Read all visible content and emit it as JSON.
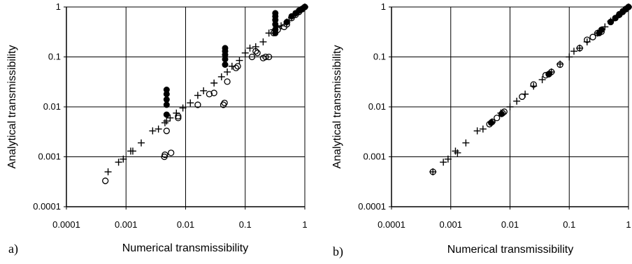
{
  "chart_data": [
    {
      "type": "scatter",
      "panel_label": "a)",
      "xlabel": "Numerical transmissibility",
      "ylabel": "Analytical transmissibility",
      "x_scale": "log",
      "y_scale": "log",
      "xlim": [
        0.0001,
        1
      ],
      "ylim": [
        0.0001,
        1
      ],
      "x_ticks": [
        "0.0001",
        "0.001",
        "0.01",
        "0.1",
        "1"
      ],
      "y_ticks": [
        "0.0001",
        "0.001",
        "0.01",
        "0.1",
        "1"
      ],
      "grid": true,
      "series": [
        {
          "marker": "plus",
          "points": [
            [
              0.0005,
              0.0005
            ],
            [
              0.00075,
              0.00078
            ],
            [
              0.0009,
              0.0009
            ],
            [
              0.0012,
              0.0013
            ],
            [
              0.0013,
              0.0013
            ],
            [
              0.0018,
              0.0019
            ],
            [
              0.0028,
              0.0033
            ],
            [
              0.0035,
              0.0036
            ],
            [
              0.0045,
              0.0048
            ],
            [
              0.0048,
              0.0052
            ],
            [
              0.0055,
              0.006
            ],
            [
              0.007,
              0.0075
            ],
            [
              0.009,
              0.0095
            ],
            [
              0.012,
              0.012
            ],
            [
              0.016,
              0.017
            ],
            [
              0.02,
              0.021
            ],
            [
              0.03,
              0.03
            ],
            [
              0.04,
              0.04
            ],
            [
              0.05,
              0.05
            ],
            [
              0.06,
              0.065
            ],
            [
              0.08,
              0.085
            ],
            [
              0.1,
              0.12
            ],
            [
              0.12,
              0.15
            ],
            [
              0.15,
              0.16
            ],
            [
              0.2,
              0.2
            ],
            [
              0.25,
              0.3
            ],
            [
              0.3,
              0.35
            ],
            [
              0.35,
              0.4
            ],
            [
              0.4,
              0.42
            ],
            [
              0.5,
              0.5
            ],
            [
              0.6,
              0.62
            ],
            [
              0.7,
              0.72
            ],
            [
              0.8,
              0.82
            ],
            [
              0.9,
              0.92
            ],
            [
              1,
              1
            ]
          ]
        },
        {
          "marker": "open-circle",
          "points": [
            [
              0.00045,
              0.00033
            ],
            [
              0.0044,
              0.001
            ],
            [
              0.0045,
              0.0011
            ],
            [
              0.0057,
              0.0012
            ],
            [
              0.0048,
              0.0033
            ],
            [
              0.0075,
              0.006
            ],
            [
              0.0075,
              0.0065
            ],
            [
              0.016,
              0.011
            ],
            [
              0.025,
              0.018
            ],
            [
              0.03,
              0.019
            ],
            [
              0.043,
              0.011
            ],
            [
              0.045,
              0.012
            ],
            [
              0.05,
              0.032
            ],
            [
              0.07,
              0.06
            ],
            [
              0.075,
              0.065
            ],
            [
              0.13,
              0.1
            ],
            [
              0.15,
              0.13
            ],
            [
              0.16,
              0.12
            ],
            [
              0.2,
              0.095
            ],
            [
              0.22,
              0.1
            ],
            [
              0.25,
              0.1
            ],
            [
              0.3,
              0.3
            ],
            [
              0.35,
              0.35
            ],
            [
              0.45,
              0.4
            ],
            [
              0.5,
              0.45
            ],
            [
              0.6,
              0.6
            ],
            [
              0.7,
              0.7
            ],
            [
              0.8,
              0.8
            ],
            [
              0.9,
              0.9
            ],
            [
              1,
              1
            ]
          ]
        },
        {
          "marker": "filled-circle",
          "points": [
            [
              0.0048,
              0.007
            ],
            [
              0.0048,
              0.011
            ],
            [
              0.0048,
              0.014
            ],
            [
              0.0048,
              0.018
            ],
            [
              0.0048,
              0.022
            ],
            [
              0.046,
              0.07
            ],
            [
              0.046,
              0.09
            ],
            [
              0.046,
              0.11
            ],
            [
              0.046,
              0.13
            ],
            [
              0.046,
              0.15
            ],
            [
              0.32,
              0.3
            ],
            [
              0.32,
              0.35
            ],
            [
              0.32,
              0.45
            ],
            [
              0.32,
              0.55
            ],
            [
              0.32,
              0.65
            ],
            [
              0.32,
              0.75
            ],
            [
              0.5,
              0.5
            ],
            [
              0.6,
              0.65
            ],
            [
              0.7,
              0.75
            ],
            [
              0.8,
              0.85
            ],
            [
              0.9,
              0.92
            ],
            [
              1,
              1
            ]
          ]
        }
      ]
    },
    {
      "type": "scatter",
      "panel_label": "b)",
      "xlabel": "Numerical transmissibility",
      "ylabel": "Analytical transmissibility",
      "x_scale": "log",
      "y_scale": "log",
      "xlim": [
        0.0001,
        1
      ],
      "ylim": [
        0.0001,
        1
      ],
      "x_ticks": [
        "0.0001",
        "0.001",
        "0.01",
        "0.1",
        "1"
      ],
      "y_ticks": [
        "0.0001",
        "0.001",
        "0.01",
        "0.1",
        "1"
      ],
      "grid": true,
      "series": [
        {
          "marker": "plus",
          "points": [
            [
              0.0005,
              0.0005
            ],
            [
              0.00075,
              0.00078
            ],
            [
              0.0009,
              0.0009
            ],
            [
              0.0012,
              0.0013
            ],
            [
              0.0013,
              0.0012
            ],
            [
              0.0018,
              0.0019
            ],
            [
              0.0028,
              0.0033
            ],
            [
              0.0035,
              0.0036
            ],
            [
              0.005,
              0.005
            ],
            [
              0.007,
              0.0075
            ],
            [
              0.01,
              0.01
            ],
            [
              0.013,
              0.013
            ],
            [
              0.018,
              0.018
            ],
            [
              0.025,
              0.026
            ],
            [
              0.035,
              0.035
            ],
            [
              0.05,
              0.05
            ],
            [
              0.07,
              0.072
            ],
            [
              0.1,
              0.1
            ],
            [
              0.12,
              0.13
            ],
            [
              0.15,
              0.15
            ],
            [
              0.2,
              0.2
            ],
            [
              0.3,
              0.3
            ],
            [
              0.4,
              0.4
            ],
            [
              0.5,
              0.52
            ],
            [
              0.7,
              0.7
            ],
            [
              0.85,
              0.85
            ],
            [
              1,
              1
            ]
          ]
        },
        {
          "marker": "open-circle",
          "points": [
            [
              0.0005,
              0.0005
            ],
            [
              0.0045,
              0.0045
            ],
            [
              0.005,
              0.005
            ],
            [
              0.006,
              0.006
            ],
            [
              0.0075,
              0.0075
            ],
            [
              0.008,
              0.008
            ],
            [
              0.016,
              0.016
            ],
            [
              0.025,
              0.028
            ],
            [
              0.04,
              0.043
            ],
            [
              0.045,
              0.045
            ],
            [
              0.05,
              0.05
            ],
            [
              0.07,
              0.07
            ],
            [
              0.15,
              0.15
            ],
            [
              0.2,
              0.22
            ],
            [
              0.25,
              0.25
            ],
            [
              0.3,
              0.3
            ],
            [
              0.35,
              0.32
            ],
            [
              0.5,
              0.5
            ],
            [
              0.6,
              0.6
            ],
            [
              0.7,
              0.7
            ],
            [
              0.8,
              0.8
            ],
            [
              0.9,
              0.9
            ],
            [
              1,
              1
            ]
          ]
        },
        {
          "marker": "filled-circle",
          "points": [
            [
              0.0048,
              0.0048
            ],
            [
              0.0072,
              0.0072
            ],
            [
              0.046,
              0.046
            ],
            [
              0.32,
              0.3
            ],
            [
              0.35,
              0.35
            ],
            [
              0.5,
              0.5
            ],
            [
              0.6,
              0.6
            ],
            [
              0.7,
              0.72
            ],
            [
              0.8,
              0.82
            ],
            [
              0.9,
              0.92
            ],
            [
              1,
              1
            ]
          ]
        }
      ]
    }
  ]
}
